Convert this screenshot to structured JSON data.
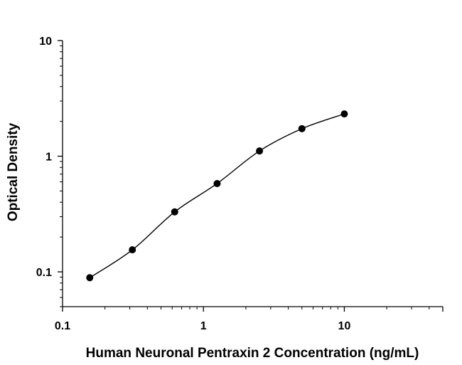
{
  "chart_data": {
    "type": "scatter",
    "xlabel": "Human Neuronal Pentraxin 2 Concentration (ng/mL)",
    "ylabel": "Optical Density",
    "x_scale": "log",
    "y_scale": "log",
    "xlim": [
      0.1,
      50
    ],
    "ylim": [
      0.05,
      10
    ],
    "x_ticks": [
      0.1,
      1,
      10
    ],
    "x_tick_labels": [
      "0.1",
      "1",
      "10"
    ],
    "y_ticks": [
      0.1,
      1,
      10
    ],
    "y_tick_labels": [
      "0.1",
      "1",
      "10"
    ],
    "grid": false,
    "points": [
      {
        "x": 0.156,
        "y": 0.089
      },
      {
        "x": 0.313,
        "y": 0.155
      },
      {
        "x": 0.625,
        "y": 0.33
      },
      {
        "x": 1.25,
        "y": 0.58
      },
      {
        "x": 2.5,
        "y": 1.11
      },
      {
        "x": 5,
        "y": 1.73
      },
      {
        "x": 10,
        "y": 2.32
      }
    ],
    "fit_curve": "smooth"
  }
}
